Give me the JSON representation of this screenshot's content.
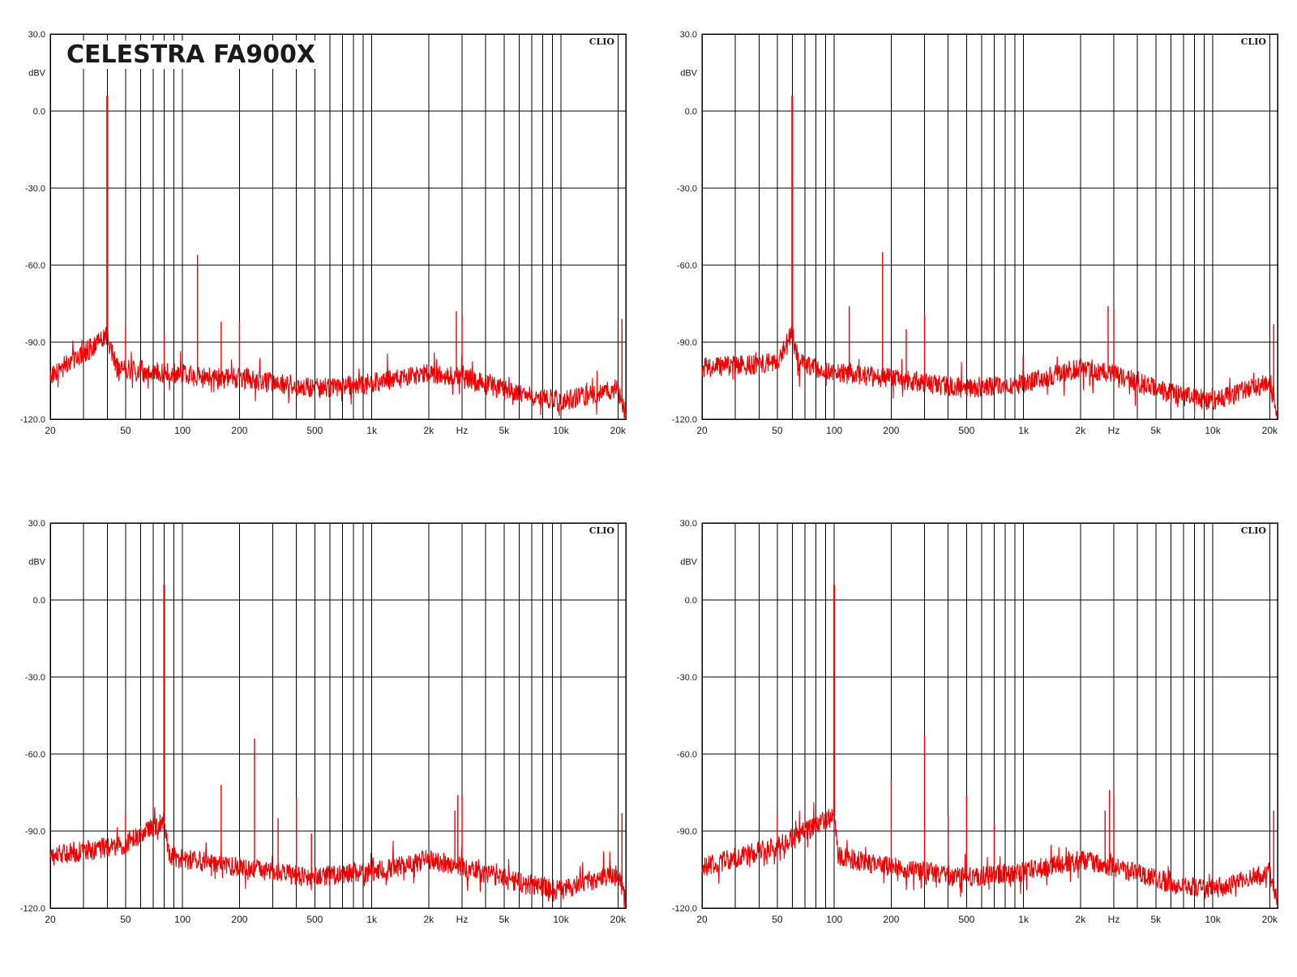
{
  "colors": {
    "trace": "#ee0000",
    "grid": "#000000",
    "text": "#1a1a1a"
  },
  "chart_data": [
    {
      "type": "line",
      "title": "CELESTRA FA900X",
      "watermark": "CLIO",
      "ylabel": "dBV",
      "xlabel": "Hz",
      "xscale": "log",
      "xlim": [
        20,
        22000
      ],
      "ylim": [
        -120,
        30
      ],
      "x_ticks": [
        20,
        50,
        100,
        200,
        500,
        1000,
        2000,
        5000,
        10000,
        20000
      ],
      "x_tick_labels": [
        "20",
        "50",
        "100",
        "200",
        "500",
        "1k",
        "2k",
        "5k",
        "10k",
        "20k"
      ],
      "y_ticks": [
        30,
        0,
        -30,
        -60,
        -90,
        -120
      ],
      "y_tick_labels": [
        "30.0",
        "0.0",
        "-30.0",
        "-60.0",
        "-90.0",
        "-120.0"
      ],
      "grid": true,
      "series": [
        {
          "peaks": [
            [
              40,
              6
            ],
            [
              50,
              -84
            ],
            [
              80,
              -87
            ],
            [
              120,
              -56
            ],
            [
              160,
              -82
            ],
            [
              200,
              -82
            ],
            [
              2800,
              -78
            ],
            [
              3000,
              -79
            ],
            [
              21000,
              -81
            ]
          ],
          "floor": [
            [
              20,
              -103
            ],
            [
              40,
              -88
            ],
            [
              45,
              -100
            ],
            [
              80,
              -102
            ],
            [
              200,
              -104
            ],
            [
              500,
              -108
            ],
            [
              1000,
              -106
            ],
            [
              2000,
              -102
            ],
            [
              3000,
              -104
            ],
            [
              6000,
              -110
            ],
            [
              10000,
              -113
            ],
            [
              20000,
              -108
            ],
            [
              22000,
              -118
            ]
          ]
        }
      ]
    },
    {
      "type": "line",
      "title": "",
      "watermark": "CLIO",
      "ylabel": "dBV",
      "xlabel": "Hz",
      "xscale": "log",
      "xlim": [
        20,
        22000
      ],
      "ylim": [
        -120,
        30
      ],
      "x_ticks": [
        20,
        50,
        100,
        200,
        500,
        1000,
        2000,
        5000,
        10000,
        20000
      ],
      "x_tick_labels": [
        "20",
        "50",
        "100",
        "200",
        "500",
        "1k",
        "2k",
        "5k",
        "10k",
        "20k"
      ],
      "y_ticks": [
        30,
        0,
        -30,
        -60,
        -90,
        -120
      ],
      "y_tick_labels": [
        "30.0",
        "0.0",
        "-30.0",
        "-60.0",
        "-90.0",
        "-120.0"
      ],
      "grid": true,
      "series": [
        {
          "peaks": [
            [
              60,
              6
            ],
            [
              120,
              -76
            ],
            [
              180,
              -55
            ],
            [
              240,
              -85
            ],
            [
              300,
              -79
            ],
            [
              2800,
              -76
            ],
            [
              3000,
              -77
            ],
            [
              21000,
              -83
            ]
          ],
          "floor": [
            [
              20,
              -100
            ],
            [
              50,
              -98
            ],
            [
              60,
              -86
            ],
            [
              65,
              -98
            ],
            [
              100,
              -102
            ],
            [
              200,
              -104
            ],
            [
              500,
              -108
            ],
            [
              1000,
              -106
            ],
            [
              2000,
              -100
            ],
            [
              3000,
              -102
            ],
            [
              6000,
              -110
            ],
            [
              10000,
              -113
            ],
            [
              20000,
              -106
            ],
            [
              22000,
              -118
            ]
          ]
        }
      ]
    },
    {
      "type": "line",
      "title": "",
      "watermark": "CLIO",
      "ylabel": "dBV",
      "xlabel": "Hz",
      "xscale": "log",
      "xlim": [
        20,
        22000
      ],
      "ylim": [
        -120,
        30
      ],
      "x_ticks": [
        20,
        50,
        100,
        200,
        500,
        1000,
        2000,
        5000,
        10000,
        20000
      ],
      "x_tick_labels": [
        "20",
        "50",
        "100",
        "200",
        "500",
        "1k",
        "2k",
        "5k",
        "10k",
        "20k"
      ],
      "y_ticks": [
        30,
        0,
        -30,
        -60,
        -90,
        -120
      ],
      "y_tick_labels": [
        "30.0",
        "0.0",
        "-30.0",
        "-60.0",
        "-90.0",
        "-120.0"
      ],
      "grid": true,
      "series": [
        {
          "peaks": [
            [
              50,
              -83
            ],
            [
              80,
              6
            ],
            [
              160,
              -72
            ],
            [
              240,
              -54
            ],
            [
              320,
              -85
            ],
            [
              400,
              -77
            ],
            [
              480,
              -91
            ],
            [
              2750,
              -82
            ],
            [
              2850,
              -76
            ],
            [
              3000,
              -76
            ],
            [
              21000,
              -83
            ]
          ],
          "floor": [
            [
              20,
              -100
            ],
            [
              50,
              -95
            ],
            [
              80,
              -86
            ],
            [
              85,
              -100
            ],
            [
              200,
              -104
            ],
            [
              500,
              -108
            ],
            [
              1000,
              -106
            ],
            [
              2000,
              -101
            ],
            [
              3000,
              -104
            ],
            [
              6000,
              -110
            ],
            [
              10000,
              -113
            ],
            [
              20000,
              -106
            ],
            [
              22000,
              -118
            ]
          ]
        }
      ]
    },
    {
      "type": "line",
      "title": "",
      "watermark": "CLIO",
      "ylabel": "dBV",
      "xlabel": "Hz",
      "xscale": "log",
      "xlim": [
        20,
        22000
      ],
      "ylim": [
        -120,
        30
      ],
      "x_ticks": [
        20,
        50,
        100,
        200,
        500,
        1000,
        2000,
        5000,
        10000,
        20000
      ],
      "x_tick_labels": [
        "20",
        "50",
        "100",
        "200",
        "500",
        "1k",
        "2k",
        "5k",
        "10k",
        "20k"
      ],
      "y_ticks": [
        30,
        0,
        -30,
        -60,
        -90,
        -120
      ],
      "y_tick_labels": [
        "30.0",
        "0.0",
        "-30.0",
        "-60.0",
        "-90.0",
        "-120.0"
      ],
      "grid": true,
      "series": [
        {
          "peaks": [
            [
              50,
              -84
            ],
            [
              100,
              6
            ],
            [
              200,
              -70
            ],
            [
              300,
              -53
            ],
            [
              400,
              -84
            ],
            [
              500,
              -76
            ],
            [
              700,
              -87
            ],
            [
              2700,
              -82
            ],
            [
              2850,
              -74
            ],
            [
              3000,
              -76
            ],
            [
              21000,
              -82
            ]
          ],
          "floor": [
            [
              20,
              -104
            ],
            [
              50,
              -96
            ],
            [
              100,
              -84
            ],
            [
              105,
              -100
            ],
            [
              200,
              -104
            ],
            [
              500,
              -108
            ],
            [
              1000,
              -106
            ],
            [
              2000,
              -101
            ],
            [
              3000,
              -104
            ],
            [
              6000,
              -110
            ],
            [
              10000,
              -113
            ],
            [
              20000,
              -106
            ],
            [
              22000,
              -118
            ]
          ]
        }
      ]
    }
  ]
}
